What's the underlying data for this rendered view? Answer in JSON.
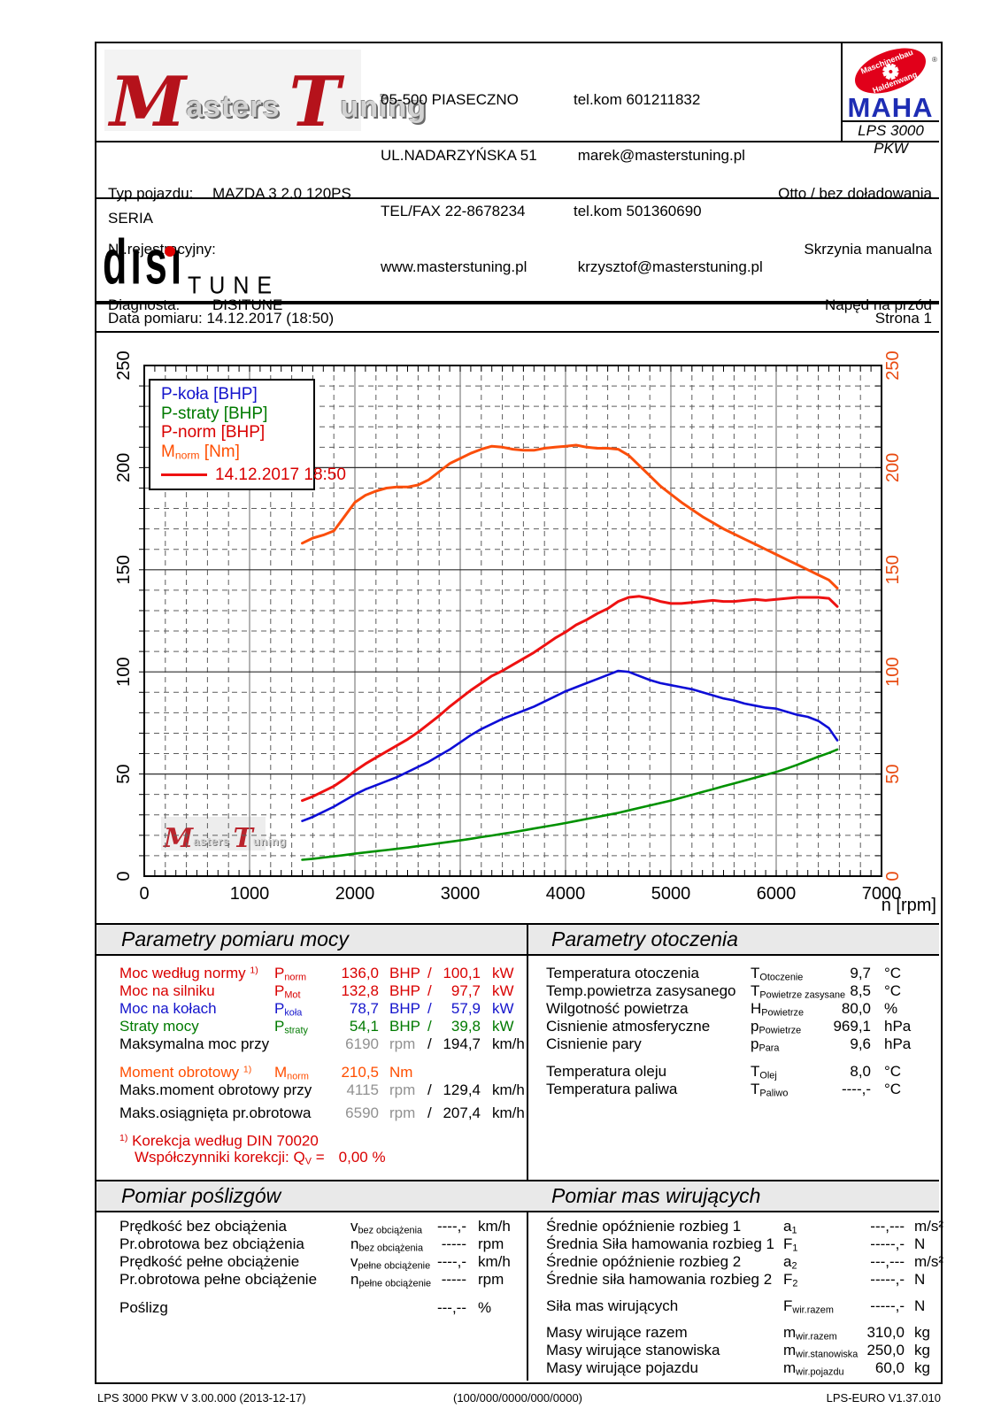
{
  "header": {
    "logo": {
      "m": "M",
      "asters": "asters",
      "t": "T",
      "uning": "uning"
    },
    "address": [
      "05-500 PIASECZNO",
      "UL.NADARZYŃSKA 51",
      "TEL/FAX 22-8678234",
      "www.masterstuning.pl"
    ],
    "contacts": [
      "tel.kom 601211832",
      " marek@masterstuning.pl",
      "tel.kom 501360690",
      " krzysztof@masterstuning.pl"
    ],
    "maha": {
      "ellipse_top": "Maschinenbau",
      "ellipse_bottom": "Haldenwang",
      "reg": "®",
      "name": "MAHA",
      "model": "LPS 3000 PKW"
    }
  },
  "vehicle": {
    "rows": [
      {
        "label": "Typ pojazdu:",
        "value": "MAZDA 3 2.0 120PS"
      },
      {
        "label": "Nr.rejestracyjny:",
        "value": ""
      },
      {
        "label": "Diagnosta:",
        "value": "DISITUNE"
      }
    ],
    "right": [
      "Otto / bez doładowania",
      "Skrzynia manualna",
      "Napęd na przód"
    ]
  },
  "seria": {
    "label": "SERIA",
    "logo_text": "dısı",
    "logo_sub": "TUNE"
  },
  "measure": {
    "date_label": "Data pomiaru: 14.12.2017 (18:50)",
    "page_label": "Strona 1"
  },
  "legend": {
    "m_base": "M",
    "m_sub": "norm",
    "m_rest": " [Nm]",
    "date": "14.12.2017 18:50"
  },
  "chart_data": {
    "type": "line",
    "xlabel": "n [rpm]",
    "xlim": [
      0,
      7000
    ],
    "ylim": [
      0,
      250
    ],
    "xticks": [
      0,
      1000,
      2000,
      3000,
      4000,
      5000,
      6000,
      7000
    ],
    "yticks": [
      0,
      50,
      100,
      150,
      200,
      250
    ],
    "grid": true,
    "legend_position": "top-left",
    "measured_at": "14.12.2017 18:50",
    "x_rpm": [
      1500,
      1600,
      1700,
      1800,
      1900,
      2000,
      2100,
      2200,
      2300,
      2400,
      2500,
      2600,
      2700,
      2800,
      2900,
      3000,
      3100,
      3200,
      3300,
      3400,
      3500,
      3600,
      3700,
      3800,
      3900,
      4000,
      4100,
      4200,
      4300,
      4400,
      4500,
      4600,
      4700,
      4800,
      4900,
      5000,
      5100,
      5200,
      5300,
      5400,
      5500,
      5600,
      5700,
      5800,
      5900,
      6000,
      6100,
      6200,
      6300,
      6400,
      6500,
      6580
    ],
    "series": [
      {
        "name": "P-koła [BHP]",
        "color": "#0d0dd6",
        "width": 2.6,
        "values": [
          27,
          29,
          31.5,
          34,
          37,
          40,
          42.5,
          44.5,
          46.5,
          48.5,
          51,
          53.5,
          56,
          59,
          62,
          65.5,
          69,
          72,
          74.5,
          77,
          79,
          81,
          83,
          85.5,
          88,
          90.5,
          92.5,
          94.5,
          96.5,
          98.5,
          100.5,
          100,
          98,
          96,
          94.5,
          93.5,
          92.5,
          91.5,
          90,
          88.5,
          87,
          86,
          84.5,
          83.5,
          82.5,
          82,
          80.5,
          79,
          78,
          76,
          72.5,
          66.5
        ]
      },
      {
        "name": "P-straty [BHP]",
        "color": "#009100",
        "width": 2.6,
        "values": [
          8,
          8.5,
          9.1,
          9.7,
          10.3,
          11,
          11.6,
          12.2,
          12.8,
          13.4,
          14,
          14.7,
          15.4,
          16.1,
          16.8,
          17.5,
          18.3,
          19.1,
          19.9,
          20.7,
          21.5,
          22.4,
          23.3,
          24.2,
          25.1,
          26,
          27,
          28,
          29,
          30,
          31,
          32.2,
          33.4,
          34.6,
          35.8,
          37,
          38.4,
          39.8,
          41.2,
          42.6,
          44,
          45.4,
          46.8,
          48.2,
          49.6,
          51,
          52.7,
          54.5,
          56.5,
          58.5,
          60.3,
          62
        ]
      },
      {
        "name": "P-norm [BHP]",
        "color": "#ee1111",
        "width": 3,
        "values": [
          37,
          39,
          41.5,
          44,
          47.5,
          51.5,
          55,
          58,
          61,
          64,
          67,
          70.5,
          74.5,
          78.5,
          83,
          87,
          91,
          94.5,
          98,
          100.5,
          103.5,
          106.5,
          109.5,
          113,
          116.5,
          119.5,
          123,
          125.5,
          128.5,
          131,
          134.5,
          136.5,
          137,
          136,
          134.5,
          133.5,
          133.5,
          134,
          134.5,
          135,
          134.5,
          134.5,
          135,
          135.5,
          135,
          135.5,
          136,
          136.5,
          136.5,
          136.5,
          136,
          132
        ]
      },
      {
        "name": "Mnorm [Nm]",
        "color": "#fb4e0b",
        "width": 3,
        "values": [
          163,
          165.5,
          167,
          169,
          176,
          183,
          186.5,
          188.5,
          190,
          190.5,
          190.5,
          191.5,
          194,
          198,
          202,
          204.5,
          207,
          209,
          210.5,
          210,
          209,
          208.5,
          208.5,
          209.5,
          210,
          210.5,
          211,
          210,
          209.5,
          209.5,
          209,
          206,
          201,
          196,
          191,
          187,
          183,
          179.5,
          176,
          173,
          170,
          167.5,
          165,
          162.5,
          160,
          157.5,
          155,
          152.5,
          150,
          147.5,
          145,
          141
        ]
      }
    ]
  },
  "power": {
    "title": "Parametry pomiaru mocy",
    "rows": [
      {
        "c": "red",
        "label": "Moc według normy",
        "sup": "1)",
        "sym": "P",
        "sub": "norm",
        "v1": "136,0",
        "u1": "BHP",
        "v2": "100,1",
        "u2": "kW"
      },
      {
        "c": "red",
        "label": "Moc na silniku",
        "sym": "P",
        "sub": "Mot",
        "v1": "132,8",
        "u1": "BHP",
        "v2": "97,7",
        "u2": "kW"
      },
      {
        "c": "blue",
        "label": "Moc na kołach",
        "sym": "P",
        "sub": "koła",
        "v1": "78,7",
        "u1": "BHP",
        "v2": "57,9",
        "u2": "kW"
      },
      {
        "c": "green",
        "label": "Straty mocy",
        "sym": "P",
        "sub": "straty",
        "v1": "54,1",
        "u1": "BHP",
        "v2": "39,8",
        "u2": "kW"
      },
      {
        "c": "black",
        "gray": true,
        "label": "Maksymalna moc przy",
        "v1": "6190",
        "u1": "rpm",
        "v2": "194,7",
        "u2": "km/h"
      },
      {
        "c": "orange",
        "gap": 12,
        "label": "Moment obrotowy",
        "sup": "1)",
        "sym": "M",
        "sub": "norm",
        "v1": "210,5",
        "u1": "Nm"
      },
      {
        "c": "black",
        "gray": true,
        "label": "Maks.moment obrotowy przy",
        "v1": "4115",
        "u1": "rpm",
        "v2": "129,4",
        "u2": "km/h"
      },
      {
        "c": "black",
        "gray": true,
        "gap": 6,
        "label": "Maks.osiągnięta pr.obrotowa",
        "v1": "6590",
        "u1": "rpm",
        "v2": "207,4",
        "u2": "km/h"
      }
    ],
    "note1_sup": "1)",
    "note1": " Korekcja według DIN 70020",
    "note2_pre": "Współczynniki korekcji: Q",
    "note2_sub": "V",
    "note2_eq": " =",
    "note2_val": "0,00 %"
  },
  "env": {
    "title": "Parametry otoczenia",
    "rows": [
      {
        "label": "Temperatura otoczenia",
        "sym": "T",
        "sub": "Otoczenie",
        "v1": "9,7",
        "u1": "°C"
      },
      {
        "label": "Temp.powietrza zasysanego",
        "sym": "T",
        "sub": "Powietrze zasysane",
        "v1": "8,5",
        "u1": "°C"
      },
      {
        "label": "Wilgotność powietrza",
        "sym": "H",
        "sub": "Powietrze",
        "v1": "80,0",
        "u1": "%"
      },
      {
        "label": "Cisnienie atmosferyczne",
        "sym": "p",
        "sub": "Powietrze",
        "v1": "969,1",
        "u1": "hPa"
      },
      {
        "label": "Cisnienie pary",
        "sym": "p",
        "sub": "Para",
        "v1": "9,6",
        "u1": "hPa"
      },
      {
        "label": "Temperatura oleju",
        "gap": 11,
        "sym": "T",
        "sub": "Olej",
        "v1": "8,0",
        "u1": "°C"
      },
      {
        "label": "Temperatura paliwa",
        "sym": "T",
        "sub": "Paliwo",
        "v1": "----,-",
        "u1": "°C"
      }
    ]
  },
  "slip": {
    "title": "Pomiar poślizgów",
    "rows": [
      {
        "label": "Prędkość bez obciążenia",
        "sym": "v",
        "sub": "bez obciążenia",
        "v1": "----,-",
        "u1": "km/h"
      },
      {
        "label": "Pr.obrotowa bez obciążenia",
        "sym": "n",
        "sub": "bez obciążenia",
        "v1": "-----",
        "u1": "rpm"
      },
      {
        "label": "Prędkość pełne obciążenie",
        "sym": "v",
        "sub": "pełne obciążenie",
        "v1": "----,-",
        "u1": "km/h"
      },
      {
        "label": "Pr.obrotowa pełne obciążenie",
        "sym": "n",
        "sub": "pełne obciążenie",
        "v1": "-----",
        "u1": "rpm"
      },
      {
        "label": "Poślizg",
        "gap": 12,
        "v1": "---,--",
        "u1": "%"
      }
    ]
  },
  "mass": {
    "title": "Pomiar mas wirujących",
    "rows": [
      {
        "label": "Średnie opóźnienie rozbieg 1",
        "sym": "a",
        "sub": "1",
        "v1": "---,---",
        "u1": "m/s²"
      },
      {
        "label": "Średnia Siła hamowania rozbieg 1",
        "sym": "F",
        "sub": "1",
        "v1": "-----,-",
        "u1": "N"
      },
      {
        "label": "Średnie opóźnienie rozbieg 2",
        "sym": "a",
        "sub": "2",
        "v1": "---,---",
        "u1": "m/s²"
      },
      {
        "label": "Średnie siła hamowania rozbieg 2",
        "sym": "F",
        "sub": "2",
        "v1": "-----,-",
        "u1": "N"
      },
      {
        "label": "Siła mas wirujących",
        "gap": 10,
        "sym": "F",
        "sub": "wir.razem",
        "v1": "-----,-",
        "u1": "N"
      },
      {
        "label": "Masy wirujące razem",
        "gap": 10,
        "sym": "m",
        "sub": "wir.razem",
        "v1": "310,0",
        "u1": "kg"
      },
      {
        "label": "Masy wirujące stanowiska",
        "sym": "m",
        "sub": "wir.stanowiska",
        "v1": "250,0",
        "u1": "kg"
      },
      {
        "label": "Masy wirujące pojazdu",
        "sym": "m",
        "sub": "wir.pojazdu",
        "v1": "60,0",
        "u1": "kg"
      }
    ]
  },
  "footer": {
    "left": "LPS 3000 PKW V 3.00.000 (2013-12-17)",
    "center": "(100/000/0000/000/0000)",
    "right": "LPS-EURO V1.37.010"
  }
}
